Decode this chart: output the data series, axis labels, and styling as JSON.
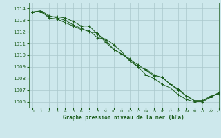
{
  "title": "Graphe pression niveau de la mer (hPa)",
  "background_color": "#cde8ec",
  "grid_color": "#aac8cc",
  "line_color": "#1a5c1a",
  "xlim": [
    -0.5,
    23
  ],
  "ylim": [
    1005.5,
    1014.5
  ],
  "yticks": [
    1006,
    1007,
    1008,
    1009,
    1010,
    1011,
    1012,
    1013,
    1014
  ],
  "xticks": [
    0,
    1,
    2,
    3,
    4,
    5,
    6,
    7,
    8,
    9,
    10,
    11,
    12,
    13,
    14,
    15,
    16,
    17,
    18,
    19,
    20,
    21,
    22,
    23
  ],
  "series": [
    [
      1013.7,
      1013.8,
      1013.4,
      1013.2,
      1013.0,
      1012.6,
      1012.3,
      1012.0,
      1011.9,
      1011.1,
      1010.5,
      1010.1,
      1009.7,
      1009.0,
      1008.8,
      1008.3,
      1008.1,
      1007.5,
      1007.1,
      1006.5,
      1006.1,
      1006.1,
      1006.5,
      1006.7
    ],
    [
      1013.7,
      1013.8,
      1013.2,
      1013.1,
      1012.8,
      1012.5,
      1012.2,
      1012.1,
      1011.5,
      1011.4,
      1010.9,
      1010.3,
      1009.5,
      1009.0,
      1008.3,
      1008.0,
      1007.5,
      1007.2,
      1006.6,
      1006.2,
      1006.0,
      1006.0,
      1006.4,
      1006.8
    ],
    [
      1013.7,
      1013.7,
      1013.3,
      1013.3,
      1013.2,
      1012.9,
      1012.5,
      1012.5,
      1011.8,
      1011.3,
      1010.5,
      1010.1,
      1009.6,
      1009.2,
      1008.7,
      1008.2,
      1008.1,
      1007.5,
      1007.0,
      1006.5,
      1006.1,
      1006.1,
      1006.4,
      1006.75
    ]
  ]
}
